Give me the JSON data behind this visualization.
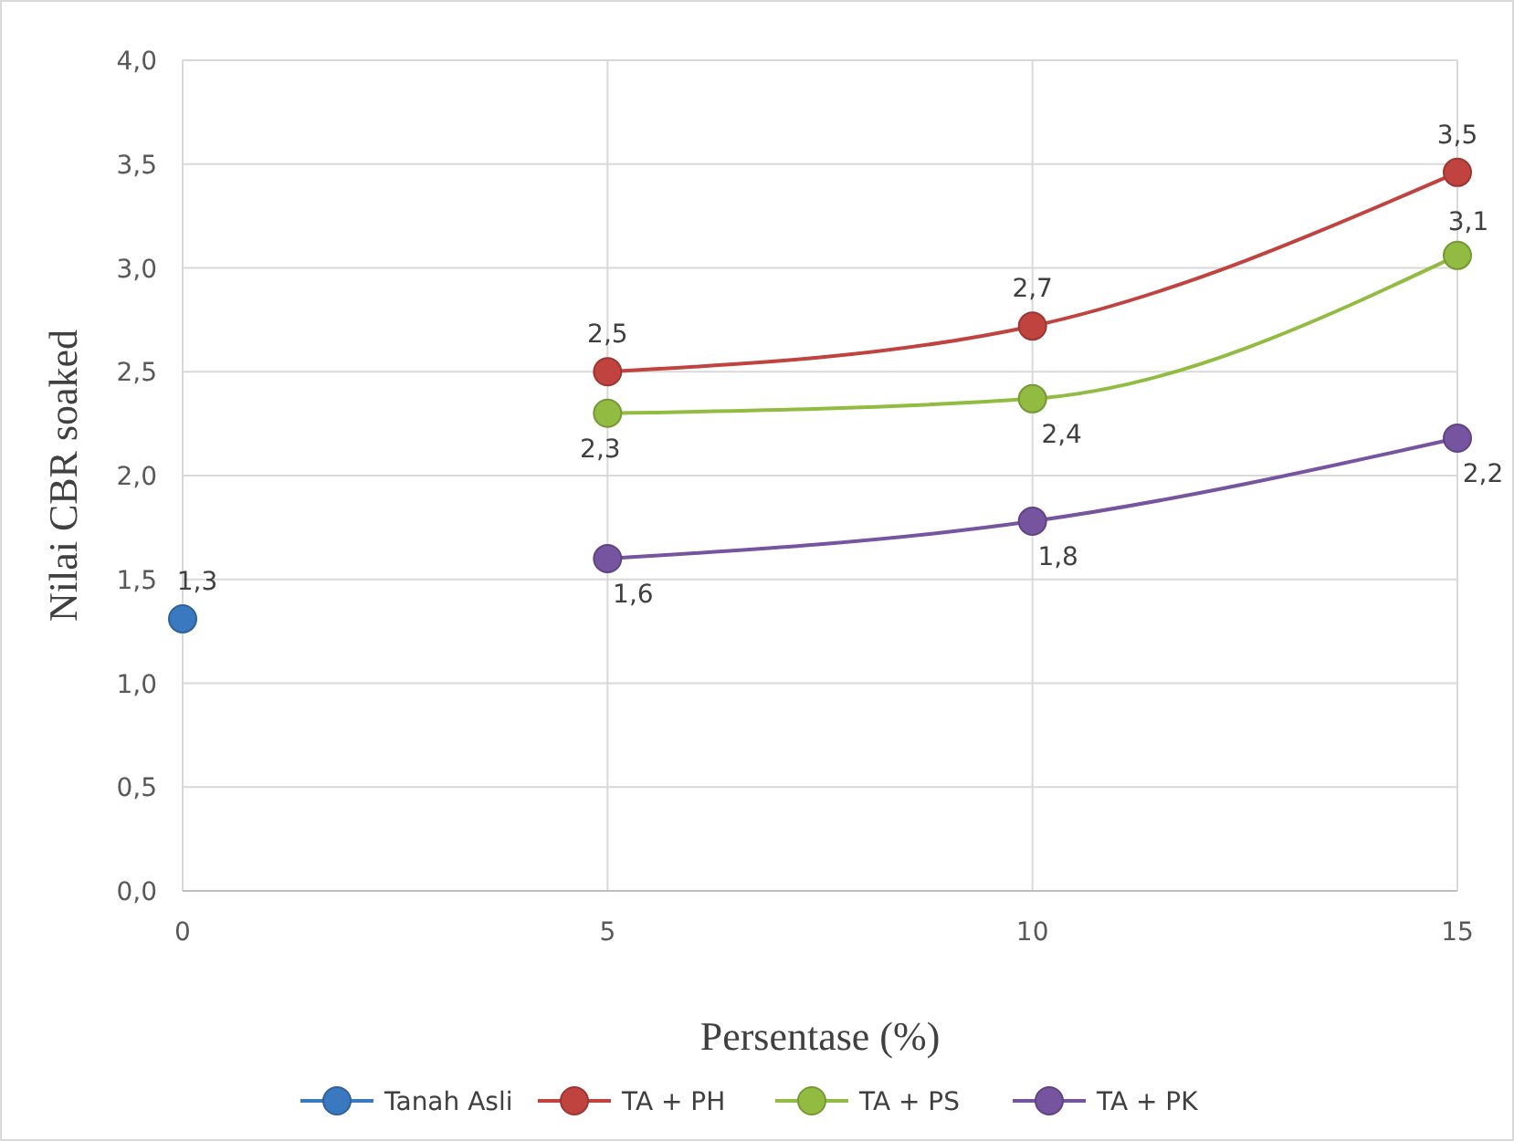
{
  "chart_data": {
    "type": "line",
    "xlabel": "Persentase (%)",
    "ylabel": "Nilai CBR soaked",
    "xlim": [
      0,
      15
    ],
    "xticks": [
      0,
      5,
      10,
      15
    ],
    "ylim": [
      0,
      4
    ],
    "yticks": [
      {
        "value": 0,
        "label": "0,0"
      },
      {
        "value": 0.5,
        "label": "0,5"
      },
      {
        "value": 1,
        "label": "1,0"
      },
      {
        "value": 1.5,
        "label": "1,5"
      },
      {
        "value": 2,
        "label": "2,0"
      },
      {
        "value": 2.5,
        "label": "2,5"
      },
      {
        "value": 3,
        "label": "3,0"
      },
      {
        "value": 3.5,
        "label": "3,5"
      },
      {
        "value": 4,
        "label": "4,0"
      }
    ],
    "grid": true,
    "legend": "bottom",
    "marker": "circle",
    "line_style": "solid",
    "series": [
      {
        "name": "Tanah Asli",
        "color": "#3a78c0",
        "x": [
          0
        ],
        "values": [
          1.31
        ],
        "value_labels": [
          "1,3"
        ]
      },
      {
        "name": "TA + PH",
        "color": "#c0433f",
        "x": [
          5,
          10,
          15
        ],
        "values": [
          2.5,
          2.72,
          3.46
        ],
        "value_labels": [
          "2,5",
          "2,7",
          "3,5"
        ]
      },
      {
        "name": "TA + PS",
        "color": "#92bb42",
        "x": [
          5,
          10,
          15
        ],
        "values": [
          2.3,
          2.37,
          3.06
        ],
        "value_labels": [
          "2,3",
          "2,4",
          "3,1"
        ]
      },
      {
        "name": "TA + PK",
        "color": "#7654a0",
        "x": [
          5,
          10,
          15
        ],
        "values": [
          1.6,
          1.78,
          2.18
        ],
        "value_labels": [
          "1,6",
          "1,8",
          "2,2"
        ]
      }
    ]
  }
}
